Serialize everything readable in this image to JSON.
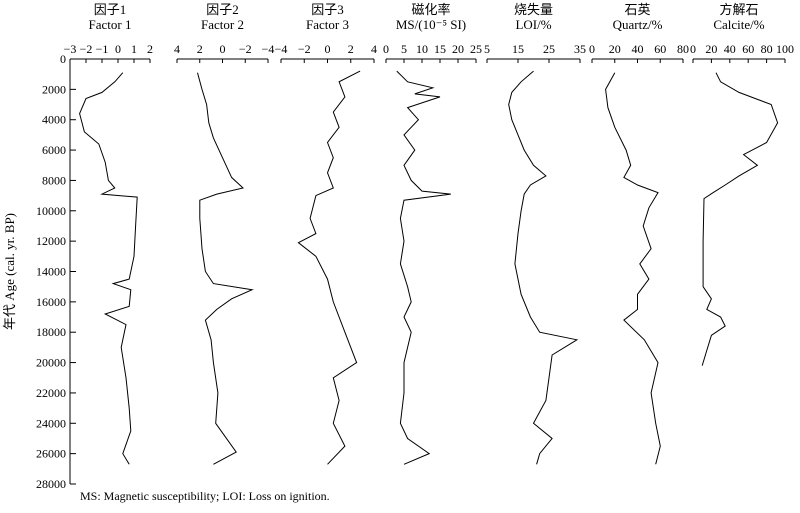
{
  "footnote": "MS: Magnetic susceptibility; LOI: Loss on ignition.",
  "y_axis": {
    "label": "年代 Age (cal. yr. BP)",
    "ylim": [
      0,
      28000
    ],
    "ticks": [
      "0",
      "2000",
      "4000",
      "6000",
      "8000",
      "10000",
      "12000",
      "14000",
      "16000",
      "18000",
      "20000",
      "22000",
      "24000",
      "26000",
      "28000"
    ]
  },
  "chart_data": [
    {
      "type": "line",
      "title": "因子1",
      "subtitle": "Factor 1",
      "xlim": [
        -3,
        2
      ],
      "reversed": false,
      "x_tick_labels": [
        "−3",
        "−2",
        "−1",
        "0",
        "1",
        "2"
      ],
      "series": [
        {
          "points": [
            [
              0.3,
              900
            ],
            [
              -0.2,
              1500
            ],
            [
              -1.0,
              2200
            ],
            [
              -2.0,
              2600
            ],
            [
              -2.4,
              3600
            ],
            [
              -2.1,
              4800
            ],
            [
              -1.2,
              5600
            ],
            [
              -0.8,
              6800
            ],
            [
              -0.6,
              8000
            ],
            [
              -0.2,
              8500
            ],
            [
              -1.0,
              8900
            ],
            [
              1.2,
              9100
            ],
            [
              1.1,
              11000
            ],
            [
              1.0,
              13000
            ],
            [
              0.7,
              14500
            ],
            [
              -0.3,
              14800
            ],
            [
              0.8,
              15200
            ],
            [
              0.7,
              16300
            ],
            [
              -0.8,
              16800
            ],
            [
              0.5,
              17500
            ],
            [
              0.2,
              19000
            ],
            [
              0.5,
              21000
            ],
            [
              0.7,
              23000
            ],
            [
              0.8,
              24500
            ],
            [
              0.3,
              26000
            ],
            [
              0.7,
              26700
            ]
          ]
        }
      ]
    },
    {
      "type": "line",
      "title": "因子2",
      "subtitle": "Factor 2",
      "xlim": [
        4,
        -4
      ],
      "reversed": true,
      "x_tick_labels": [
        "4",
        "2",
        "0",
        "−2",
        "−4"
      ],
      "series": [
        {
          "points": [
            [
              2.2,
              900
            ],
            [
              1.8,
              2000
            ],
            [
              1.4,
              3000
            ],
            [
              1.2,
              4200
            ],
            [
              0.8,
              5200
            ],
            [
              0.0,
              6500
            ],
            [
              -0.8,
              7800
            ],
            [
              -1.8,
              8500
            ],
            [
              0.5,
              8900
            ],
            [
              2.0,
              9300
            ],
            [
              2.0,
              10500
            ],
            [
              1.8,
              12500
            ],
            [
              1.5,
              14000
            ],
            [
              0.8,
              14800
            ],
            [
              -2.6,
              15200
            ],
            [
              -0.8,
              15800
            ],
            [
              0.5,
              16500
            ],
            [
              1.5,
              17200
            ],
            [
              1.0,
              18500
            ],
            [
              0.8,
              20000
            ],
            [
              0.4,
              22000
            ],
            [
              0.6,
              24000
            ],
            [
              -1.2,
              25900
            ],
            [
              0.8,
              26700
            ]
          ]
        }
      ]
    },
    {
      "type": "line",
      "title": "因子3",
      "subtitle": "Factor 3",
      "xlim": [
        -4,
        4
      ],
      "reversed": false,
      "x_tick_labels": [
        "−4",
        "−2",
        "0",
        "2",
        "4"
      ],
      "series": [
        {
          "points": [
            [
              2.8,
              800
            ],
            [
              1.0,
              1500
            ],
            [
              1.5,
              2500
            ],
            [
              0.5,
              3500
            ],
            [
              1.0,
              4500
            ],
            [
              0.0,
              5500
            ],
            [
              0.5,
              6500
            ],
            [
              0.0,
              7500
            ],
            [
              0.5,
              8500
            ],
            [
              -1.0,
              9000
            ],
            [
              -1.5,
              10500
            ],
            [
              -1.0,
              11500
            ],
            [
              -2.5,
              12100
            ],
            [
              -1.0,
              13000
            ],
            [
              0.0,
              14500
            ],
            [
              0.5,
              16000
            ],
            [
              1.5,
              18000
            ],
            [
              2.5,
              20000
            ],
            [
              0.5,
              21000
            ],
            [
              1.0,
              22500
            ],
            [
              0.5,
              24000
            ],
            [
              1.5,
              25500
            ],
            [
              0.0,
              26700
            ]
          ]
        }
      ]
    },
    {
      "type": "line",
      "title": "磁化率",
      "subtitle": "MS/(10⁻⁵ SI)",
      "xlim": [
        0,
        25
      ],
      "reversed": false,
      "x_tick_labels": [
        "0",
        "5",
        "10",
        "15",
        "20",
        "25"
      ],
      "series": [
        {
          "points": [
            [
              3,
              800
            ],
            [
              6,
              1500
            ],
            [
              13,
              1900
            ],
            [
              8,
              2300
            ],
            [
              15,
              2500
            ],
            [
              6,
              3200
            ],
            [
              9,
              4000
            ],
            [
              5,
              5000
            ],
            [
              8,
              6000
            ],
            [
              5,
              7000
            ],
            [
              7,
              8000
            ],
            [
              10,
              8700
            ],
            [
              18,
              8900
            ],
            [
              5,
              9300
            ],
            [
              4,
              10500
            ],
            [
              5,
              12000
            ],
            [
              4,
              13500
            ],
            [
              6,
              15000
            ],
            [
              7,
              16000
            ],
            [
              5,
              17000
            ],
            [
              7,
              18000
            ],
            [
              5,
              20000
            ],
            [
              5,
              22000
            ],
            [
              4,
              24000
            ],
            [
              6,
              25000
            ],
            [
              12,
              26000
            ],
            [
              5,
              26700
            ]
          ]
        }
      ]
    },
    {
      "type": "line",
      "title": "烧失量",
      "subtitle": "LOI/%",
      "xlim": [
        5,
        35
      ],
      "reversed": false,
      "x_tick_labels": [
        "5",
        "15",
        "25",
        "35"
      ],
      "series": [
        {
          "points": [
            [
              20,
              800
            ],
            [
              16,
              1500
            ],
            [
              13,
              2200
            ],
            [
              12,
              3000
            ],
            [
              13,
              4000
            ],
            [
              15,
              5000
            ],
            [
              17,
              6000
            ],
            [
              20,
              7000
            ],
            [
              24,
              7700
            ],
            [
              19,
              8300
            ],
            [
              17,
              8900
            ],
            [
              16,
              10000
            ],
            [
              15,
              11500
            ],
            [
              14,
              13500
            ],
            [
              16,
              15500
            ],
            [
              19,
              17000
            ],
            [
              22,
              18000
            ],
            [
              34,
              18500
            ],
            [
              26,
              19500
            ],
            [
              25,
              21000
            ],
            [
              24,
              22500
            ],
            [
              20,
              24000
            ],
            [
              26,
              25000
            ],
            [
              22,
              26000
            ],
            [
              21,
              26700
            ]
          ]
        }
      ]
    },
    {
      "type": "line",
      "title": "石英",
      "subtitle": "Quartz/%",
      "xlim": [
        0,
        80
      ],
      "reversed": false,
      "x_tick_labels": [
        "0",
        "20",
        "40",
        "60",
        "80"
      ],
      "series": [
        {
          "points": [
            [
              20,
              900
            ],
            [
              12,
              2000
            ],
            [
              14,
              3200
            ],
            [
              20,
              4500
            ],
            [
              30,
              6000
            ],
            [
              34,
              7000
            ],
            [
              28,
              7800
            ],
            [
              40,
              8300
            ],
            [
              58,
              8800
            ],
            [
              50,
              9800
            ],
            [
              45,
              11000
            ],
            [
              52,
              12500
            ],
            [
              42,
              13500
            ],
            [
              50,
              14500
            ],
            [
              40,
              15500
            ],
            [
              40,
              16500
            ],
            [
              28,
              17200
            ],
            [
              46,
              18500
            ],
            [
              58,
              20000
            ],
            [
              52,
              22000
            ],
            [
              56,
              24000
            ],
            [
              60,
              25500
            ],
            [
              56,
              26700
            ]
          ]
        }
      ]
    },
    {
      "type": "line",
      "title": "方解石",
      "subtitle": "Calcite/%",
      "xlim": [
        0,
        100
      ],
      "reversed": false,
      "x_tick_labels": [
        "0",
        "20",
        "40",
        "60",
        "80",
        "100"
      ],
      "series": [
        {
          "points": [
            [
              25,
              900
            ],
            [
              30,
              1500
            ],
            [
              50,
              2200
            ],
            [
              85,
              3000
            ],
            [
              92,
              4200
            ],
            [
              80,
              5500
            ],
            [
              55,
              6300
            ],
            [
              70,
              7000
            ],
            [
              50,
              7700
            ],
            [
              35,
              8300
            ],
            [
              22,
              8800
            ],
            [
              12,
              9200
            ],
            [
              11,
              12000
            ],
            [
              11,
              15000
            ],
            [
              20,
              15800
            ],
            [
              15,
              16500
            ],
            [
              30,
              17000
            ],
            [
              35,
              17600
            ],
            [
              20,
              18200
            ],
            [
              15,
              19200
            ],
            [
              10,
              20200
            ]
          ]
        }
      ]
    }
  ]
}
